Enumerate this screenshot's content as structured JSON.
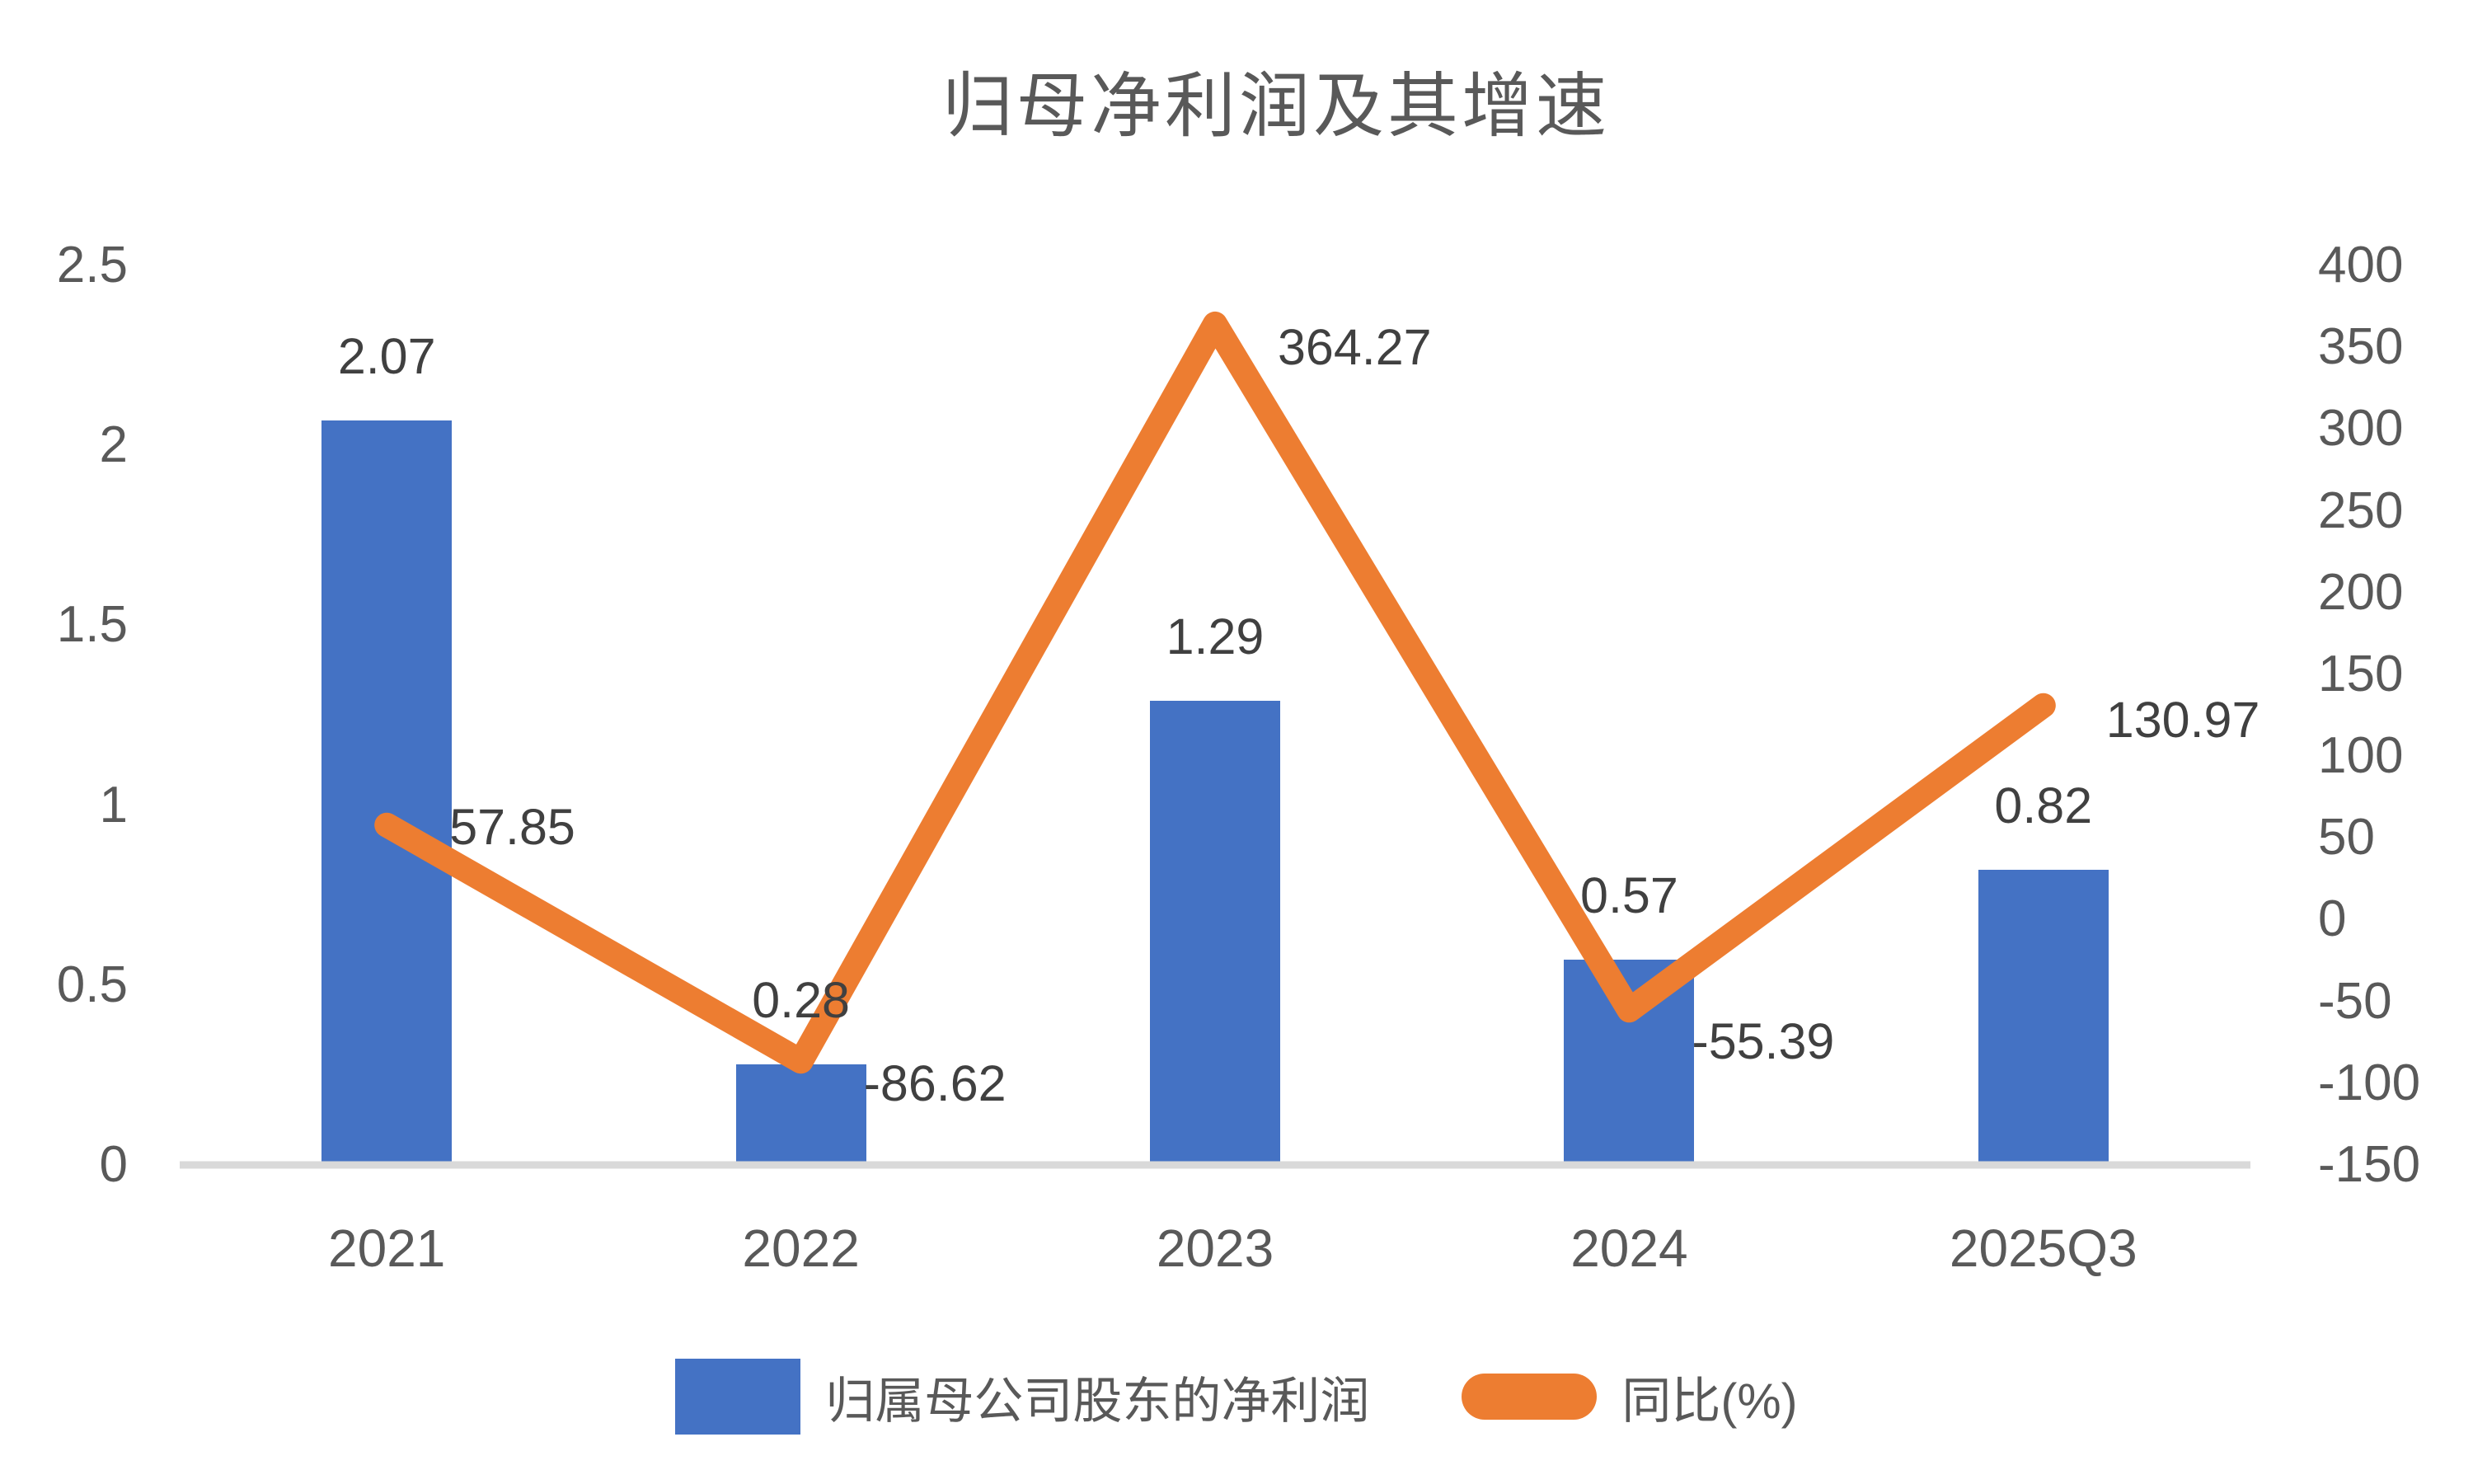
{
  "title": "归母净利润及其增速",
  "chart_data": {
    "type": "bar",
    "subtype": "bar-line-combo-dual-axis",
    "title": "归母净利润及其增速",
    "categories": [
      "2021",
      "2022",
      "2023",
      "2024",
      "2025Q3"
    ],
    "series": [
      {
        "name": "归属母公司股东的净利润",
        "render": "bar",
        "axis": "left",
        "color": "#4472C4",
        "values": [
          2.07,
          0.28,
          1.29,
          0.57,
          0.82
        ],
        "labels": [
          "2.07",
          "0.28",
          "1.29",
          "0.57",
          "0.82"
        ]
      },
      {
        "name": "同比(%)",
        "render": "line",
        "axis": "right",
        "color": "#ED7D31",
        "values": [
          57.85,
          -86.62,
          364.27,
          -55.39,
          130.97
        ],
        "labels": [
          "57.85",
          "-86.62",
          "364.27",
          "-55.39",
          "130.97"
        ]
      }
    ],
    "left_axis": {
      "min": 0,
      "max": 2.5,
      "step": 0.5,
      "tick_labels": [
        "0",
        "0.5",
        "1",
        "1.5",
        "2",
        "2.5"
      ]
    },
    "right_axis": {
      "min": -150,
      "max": 400,
      "step": 50,
      "tick_labels": [
        "-150",
        "-100",
        "-50",
        "0",
        "50",
        "100",
        "150",
        "200",
        "250",
        "300",
        "350",
        "400"
      ]
    },
    "grid": false,
    "legend_position": "bottom",
    "xlabel": "",
    "ylabel": ""
  },
  "legend": {
    "items": [
      {
        "label": "归属母公司股东的净利润",
        "swatch": "bar-swatch",
        "color": "#4472C4"
      },
      {
        "label": "同比(%)",
        "swatch": "line-swatch",
        "color": "#ED7D31"
      }
    ]
  },
  "colors": {
    "bar": "#4472C4",
    "line": "#ED7D31",
    "axis_line": "#D9D9D9",
    "tick_text": "#595959",
    "data_label_text": "#404040",
    "title_text": "#595959"
  }
}
